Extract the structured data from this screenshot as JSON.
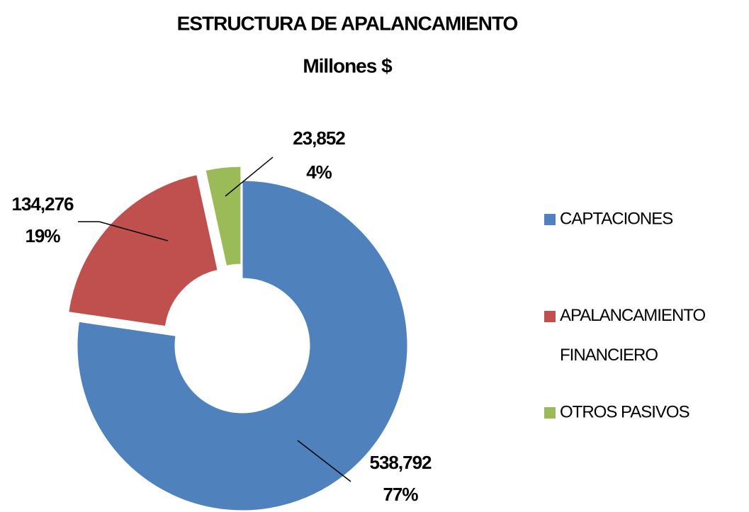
{
  "chart_data": {
    "type": "donut",
    "title": "ESTRUCTURA DE APALANCAMIENTO",
    "subtitle": "Millones $",
    "categories": [
      "CAPTACIONES",
      "APALANCAMIENTO FINANCIERO",
      "OTROS PASIVOS"
    ],
    "values": [
      538792,
      134276,
      23852
    ],
    "value_labels": [
      "538,792",
      "134,276",
      "23,852"
    ],
    "percent_labels": [
      "77%",
      "19%",
      "4%"
    ],
    "colors": [
      "#4f81bd",
      "#c0504d",
      "#9bbb59"
    ],
    "legend": "right"
  }
}
